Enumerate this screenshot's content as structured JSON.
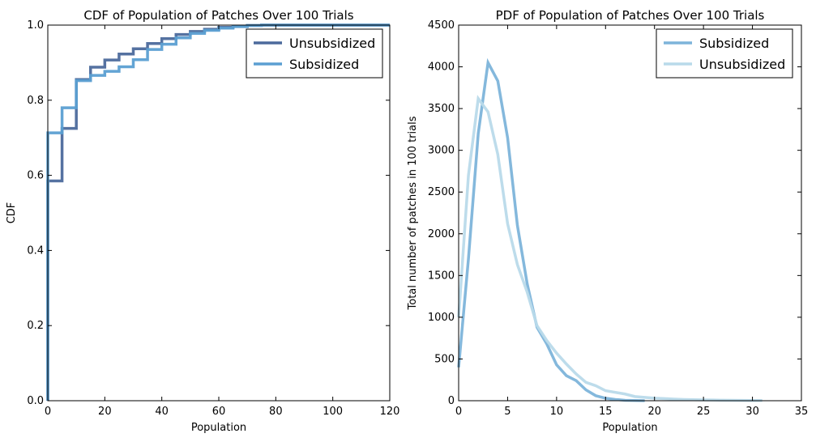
{
  "chart_data": [
    {
      "type": "line",
      "subtype": "step",
      "title": "CDF of Population of Patches Over 100 Trials",
      "xlabel": "Population",
      "ylabel": "CDF",
      "xlim": [
        0,
        120
      ],
      "ylim": [
        0,
        1.0
      ],
      "xticks": [
        "0",
        "20",
        "40",
        "60",
        "80",
        "100",
        "120"
      ],
      "yticks": [
        "0.0",
        "0.2",
        "0.4",
        "0.6",
        "0.8",
        "1.0"
      ],
      "legend_position": "top-right",
      "series": [
        {
          "name": "Unsubsidized",
          "color": "#4c6a9c",
          "x": [
            0,
            5,
            10,
            15,
            20,
            25,
            30,
            35,
            40,
            45,
            50,
            55,
            60,
            65,
            70,
            75
          ],
          "y": [
            0.585,
            0.725,
            0.855,
            0.888,
            0.907,
            0.923,
            0.937,
            0.951,
            0.964,
            0.975,
            0.983,
            0.989,
            0.994,
            0.997,
            0.999,
            1.0
          ]
        },
        {
          "name": "Subsidized",
          "color": "#5b9fd2",
          "x": [
            0,
            5,
            10,
            15,
            20,
            25,
            30,
            35,
            40,
            45,
            50,
            55,
            60,
            65,
            70,
            75
          ],
          "y": [
            0.713,
            0.78,
            0.852,
            0.866,
            0.877,
            0.889,
            0.908,
            0.935,
            0.949,
            0.966,
            0.978,
            0.986,
            0.992,
            0.996,
            0.999,
            1.0
          ]
        }
      ]
    },
    {
      "type": "line",
      "title": "PDF of Population of Patches Over 100 Trials",
      "xlabel": "Population",
      "ylabel": "Total number of patches in 100 trials",
      "xlim": [
        0,
        35
      ],
      "ylim": [
        0,
        4500
      ],
      "xticks": [
        "0",
        "5",
        "10",
        "15",
        "20",
        "25",
        "30",
        "35"
      ],
      "yticks": [
        "0",
        "500",
        "1000",
        "1500",
        "2000",
        "2500",
        "3000",
        "3500",
        "4000",
        "4500"
      ],
      "legend_position": "top-right",
      "series": [
        {
          "name": "Subsidized",
          "color": "#7db4da",
          "x": [
            0,
            1,
            2,
            3,
            4,
            5,
            6,
            7,
            8,
            9,
            10,
            11,
            12,
            13,
            14,
            15,
            16,
            17,
            18,
            19
          ],
          "y": [
            400,
            1700,
            3200,
            4050,
            3830,
            3150,
            2100,
            1400,
            880,
            680,
            430,
            300,
            240,
            130,
            60,
            30,
            15,
            5,
            2,
            0
          ]
        },
        {
          "name": "Unsubsidized",
          "color": "#b9daea",
          "x": [
            0,
            1,
            2,
            3,
            4,
            5,
            6,
            7,
            8,
            9,
            10,
            11,
            12,
            13,
            14,
            15,
            16,
            17,
            18,
            19,
            20,
            21,
            22,
            23,
            24,
            25,
            26,
            27,
            28,
            29,
            30,
            31
          ],
          "y": [
            1000,
            2700,
            3620,
            3460,
            2950,
            2120,
            1630,
            1300,
            900,
            720,
            570,
            440,
            320,
            220,
            180,
            120,
            100,
            80,
            50,
            40,
            30,
            25,
            20,
            15,
            12,
            10,
            8,
            6,
            5,
            4,
            3,
            2
          ]
        }
      ]
    }
  ]
}
